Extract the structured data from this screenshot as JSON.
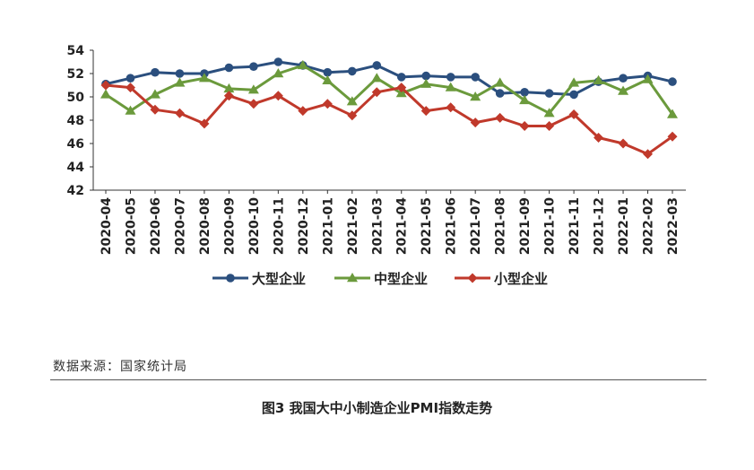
{
  "chart_data": {
    "type": "line",
    "title": "",
    "xlabel": "",
    "ylabel": "",
    "ylim": [
      42,
      54
    ],
    "yticks": [
      42,
      44,
      46,
      48,
      50,
      52,
      54
    ],
    "grid": false,
    "legend_position": "bottom",
    "categories": [
      "2020-04",
      "2020-05",
      "2020-06",
      "2020-07",
      "2020-08",
      "2020-09",
      "2020-10",
      "2020-11",
      "2020-12",
      "2021-01",
      "2021-02",
      "2021-03",
      "2021-04",
      "2021-05",
      "2021-06",
      "2021-07",
      "2021-08",
      "2021-09",
      "2021-10",
      "2021-11",
      "2021-12",
      "2022-01",
      "2022-02",
      "2022-03"
    ],
    "series": [
      {
        "name": "大型企业",
        "color": "#2b4f7e",
        "marker": "circle",
        "values": [
          51.1,
          51.6,
          52.1,
          52.0,
          52.0,
          52.5,
          52.6,
          53.0,
          52.7,
          52.1,
          52.2,
          52.7,
          51.7,
          51.8,
          51.7,
          51.7,
          50.3,
          50.4,
          50.3,
          50.2,
          51.3,
          51.6,
          51.8,
          51.3
        ]
      },
      {
        "name": "中型企业",
        "color": "#6b9a3c",
        "marker": "triangle",
        "values": [
          50.2,
          48.8,
          50.2,
          51.2,
          51.6,
          50.7,
          50.6,
          52.0,
          52.7,
          51.4,
          49.6,
          51.6,
          50.3,
          51.1,
          50.8,
          50.0,
          51.2,
          49.7,
          48.6,
          51.2,
          51.4,
          50.5,
          51.5,
          48.5
        ]
      },
      {
        "name": "小型企业",
        "color": "#c0392b",
        "marker": "diamond",
        "values": [
          51.0,
          50.8,
          48.9,
          48.6,
          47.7,
          50.1,
          49.4,
          50.1,
          48.8,
          49.4,
          48.4,
          50.4,
          50.8,
          48.8,
          49.1,
          47.8,
          48.2,
          47.5,
          47.5,
          48.5,
          46.5,
          46.0,
          45.1,
          46.6
        ]
      }
    ]
  },
  "source_text": "数据来源：国家统计局",
  "caption_text": "图3  我国大中小制造企业PMI指数走势"
}
